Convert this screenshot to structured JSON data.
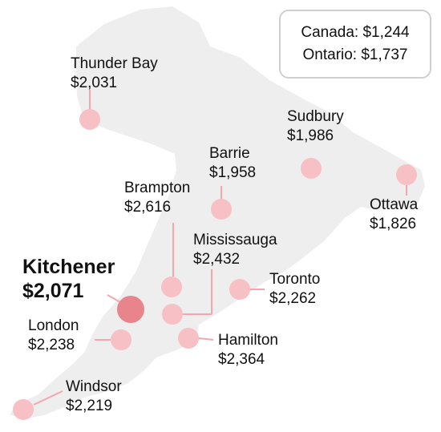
{
  "legend": {
    "canada": "Canada: $1,244",
    "ontario": "Ontario: $1,737"
  },
  "colors": {
    "land": "#eeeeee",
    "dot": "#f7c0c4",
    "dot_highlight": "#e8858c",
    "leader": "#f3a7ad"
  },
  "cities": [
    {
      "name": "Thunder Bay",
      "value": "$2,031"
    },
    {
      "name": "Sudbury",
      "value": "$1,986"
    },
    {
      "name": "Barrie",
      "value": "$1,958"
    },
    {
      "name": "Ottawa",
      "value": "$1,826"
    },
    {
      "name": "Brampton",
      "value": "$2,616"
    },
    {
      "name": "Mississauga",
      "value": "$2,432"
    },
    {
      "name": "Kitchener",
      "value": "$2,071"
    },
    {
      "name": "Toronto",
      "value": "$2,262"
    },
    {
      "name": "London",
      "value": "$2,238"
    },
    {
      "name": "Hamilton",
      "value": "$2,364"
    },
    {
      "name": "Windsor",
      "value": "$2,219"
    }
  ]
}
